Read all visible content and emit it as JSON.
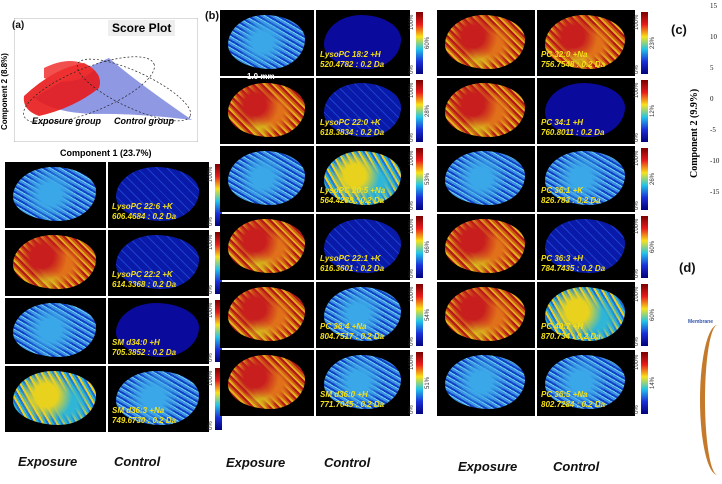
{
  "panel_a": {
    "label": "(a)",
    "title": "Score Plot",
    "xlabel": "Component 1 (23.7%)",
    "ylabel": "Component 2 (8.8%)",
    "exposure_group": "Exposure group",
    "control_group": "Control group"
  },
  "panel_b": {
    "label": "(b)",
    "scale_bar": "1.0 mm"
  },
  "panel_c": {
    "label": "(c)",
    "ylabel": "Component 2 (9.9%)",
    "ticks": [
      "15",
      "10",
      "5",
      "0",
      "-5",
      "-10",
      "-15"
    ]
  },
  "panel_d": {
    "label": "(d)",
    "text": "Membrane"
  },
  "colorbar": {
    "top": "100%",
    "bottom": "0%"
  },
  "columns": [
    {
      "rows": [
        {
          "ion": "LysoPC 22:6 +K",
          "mz": "606.4684 : 0.2 Da",
          "pct": "51%"
        },
        {
          "ion": "LysoPC 22:2 +K",
          "mz": "614.3368 : 0.2 Da",
          "pct": "56%"
        },
        {
          "ion": "SM d34:0 +H",
          "mz": "705.3852 : 0.2 Da",
          "pct": "23%"
        },
        {
          "ion": "SM d36:3 +Na",
          "mz": "749.6730 : 0.2 Da",
          "pct": "35%"
        }
      ]
    },
    {
      "rows": [
        {
          "ion": "LysoPC 18:2 +H",
          "mz": "520.4782 : 0.2 Da",
          "pct": "60%"
        },
        {
          "ion": "LysoPC 22:0 +K",
          "mz": "618.3834 : 0.2 Da",
          "pct": "28%"
        },
        {
          "ion": "LysoPC 20:5 +Na",
          "mz": "564.4288 : 0.2 Da",
          "pct": "53%"
        },
        {
          "ion": "LysoPC 22:1 +K",
          "mz": "616.3601 : 0.2 Da",
          "pct": "66%"
        },
        {
          "ion": "PC 36:4 +Na",
          "mz": "804.7517 : 0.2 Da",
          "pct": "54%"
        },
        {
          "ion": "SM d36:0 +H",
          "mz": "771.7045 : 0.2 Da",
          "pct": "51%"
        }
      ]
    },
    {
      "rows": [
        {
          "ion": "PC 32:0 +Na",
          "mz": "756.7548 : 0.2 Da",
          "pct": "23%"
        },
        {
          "ion": "PC 34:1 +H",
          "mz": "760.8011 : 0.2 Da",
          "pct": "12%"
        },
        {
          "ion": "PC 36:1 +K",
          "mz": "826.783 : 0.2 Da",
          "pct": "26%"
        },
        {
          "ion": "PC 36:3 +H",
          "mz": "784.7435 : 0.2 Da",
          "pct": "60%"
        },
        {
          "ion": "PC 40:7 +H",
          "mz": "870.734 : 0.2 Da",
          "pct": "60%"
        },
        {
          "ion": "PC 36:5 +Na",
          "mz": "802.7284 : 0.2 Da",
          "pct": "14%"
        }
      ]
    }
  ],
  "footers": {
    "exposure": "Exposure",
    "control": "Control"
  }
}
